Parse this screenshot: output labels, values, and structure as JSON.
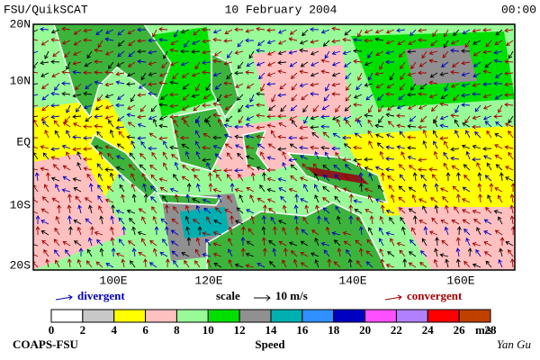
{
  "header": {
    "left": "FSU/QuikSCAT",
    "date": "10 February 2004",
    "time": "00:00"
  },
  "map": {
    "lat_labels": [
      "20N",
      "10N",
      "EQ",
      "10S",
      "20S"
    ],
    "lon_labels": [
      "100E",
      "120E",
      "140E",
      "160E"
    ]
  },
  "legend": {
    "divergent": "divergent",
    "scale": "scale",
    "scale_value": "10 m/s",
    "convergent": "convergent"
  },
  "colorbar": {
    "colors": [
      "#ffffff",
      "#c8c8c8",
      "#ffff00",
      "#ffc0c0",
      "#98fb98",
      "#00e000",
      "#909090",
      "#00b0b0",
      "#3090ff",
      "#0000c0",
      "#ff50ff",
      "#b080ff",
      "#ff0000",
      "#c04000"
    ],
    "labels": [
      "0",
      "2",
      "4",
      "6",
      "8",
      "10",
      "12",
      "14",
      "16",
      "18",
      "20",
      "22",
      "24",
      "26",
      "28"
    ],
    "unit": "m/s",
    "title": "Speed"
  },
  "footer": {
    "left": "COAPS-FSU",
    "credit": "Yan Gu"
  }
}
